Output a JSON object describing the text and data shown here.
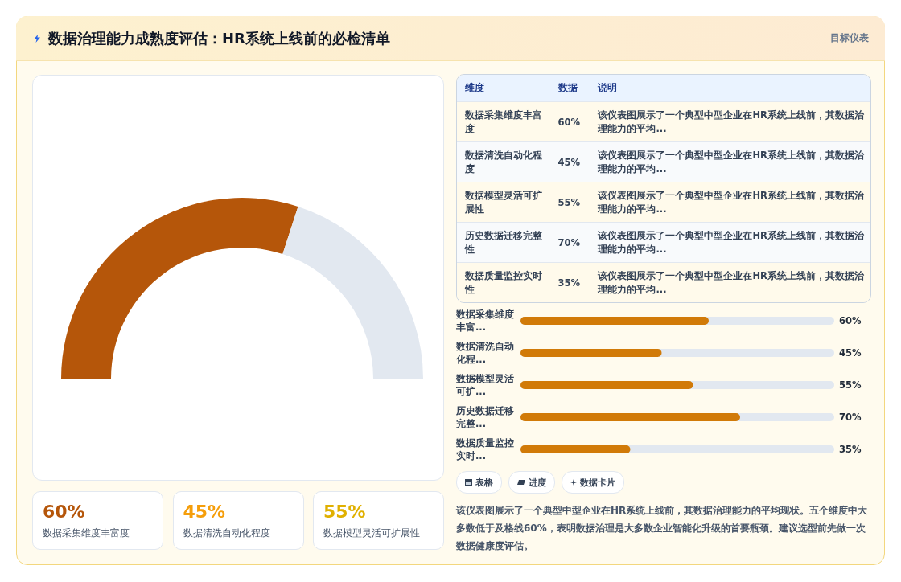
{
  "chart_data": [
    {
      "type": "other",
      "title": "数据治理能力成熟度评估：HR系统上线前的必检清单",
      "subtitle": "目标仪表"
    },
    {
      "type": "donut",
      "categories": [
        null,
        null
      ],
      "values": [
        60,
        40
      ],
      "colors": [
        "#b5560a",
        "#e2e8f0"
      ]
    },
    {
      "type": "other",
      "annotations": [
        "维度",
        "数据",
        "说明",
        "数据采集维度丰富度",
        "60%",
        "该仪表图展示了一个典型中型企业在HR系统上线前，其数据治理能力的平均...",
        "数据清洗自动化程度",
        "45%",
        "该仪表图展示了一个典型中型企业在HR系统上线前，其数据治理能力的平均...",
        "数据模型灵活可扩展性",
        "55%",
        "该仪表图展示了一个典型中型企业在HR系统上线前，其数据治理能力的平均...",
        "历史数据迁移完整性",
        "70%",
        "该仪表图展示了一个典型中型企业在HR系统上线前，其数据治理能力的平均...",
        "数据质量监控实时性",
        "35%",
        "该仪表图展示了一个典型中型企业在HR系统上线前，其数据治理能力的平均..."
      ]
    },
    {
      "type": "bar",
      "orientation": "horizontal",
      "categories": [
        "数据采集维度丰富...",
        "数据清洗自动化程...",
        "数据模型灵活可扩...",
        "历史数据迁移完整...",
        "数据质量监控实时..."
      ],
      "values": [
        60,
        45,
        55,
        70,
        35
      ],
      "value_labels": [
        "60%",
        "45%",
        "55%",
        "70%",
        "35%"
      ],
      "color": "#d17a08",
      "xlim": [
        0,
        100
      ],
      "tick_labels": "y"
    },
    {
      "type": "other",
      "annotations": [
        "60%",
        "数据采集维度丰富度",
        "45%",
        "数据清洗自动化程度",
        "55%",
        "数据模型灵活可扩展性",
        "表格",
        "进度",
        "数据卡片",
        "该仪表图展示了一个典型中型企业在HR系统上线前，其数据治理能力的平均现状。五个维度中大多数低于及格线60%，表明数据治理是大多数企业智能化升级的首要瓶颈。建议选型前先做一次数据健康度评估。"
      ],
      "colors": [
        "#b5560a",
        "#f59e0b",
        "#e0b000"
      ]
    }
  ]
}
